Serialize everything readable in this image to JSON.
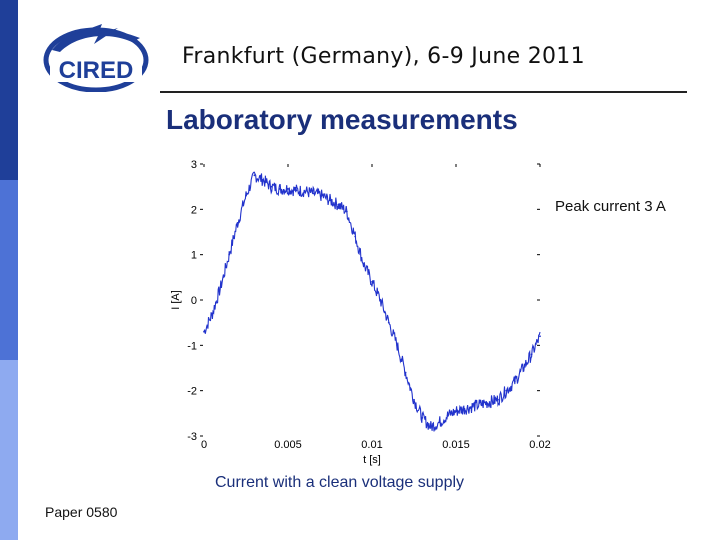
{
  "header": {
    "logo_text": "CIRED",
    "conference": "Frankfurt (Germany), 6-9 June 2011"
  },
  "slide_title": "Laboratory measurements",
  "annotation": "Peak current 3 A",
  "caption": "Current with a clean voltage supply",
  "footer": {
    "paper": "Paper 0580"
  },
  "colors": {
    "sidebar_dark": "#1f3f99",
    "sidebar_mid": "#4d72d6",
    "sidebar_light": "#8eaaf0",
    "trace": "#2233cc",
    "title": "#1a2f7a"
  },
  "chart_data": {
    "type": "line",
    "xlabel": "t [s]",
    "ylabel": "I [A]",
    "xlim": [
      0,
      0.02
    ],
    "ylim": [
      -3,
      3
    ],
    "x_ticks": [
      "0",
      "0.005",
      "0.01",
      "0.015",
      "0.02"
    ],
    "y_ticks": [
      "3",
      "2",
      "1",
      "0",
      "-1",
      "-2",
      "-3"
    ],
    "series": [
      {
        "x": [
          0,
          0.0005,
          0.001,
          0.0015,
          0.002,
          0.0025,
          0.003,
          0.0035,
          0.004,
          0.0045,
          0.005,
          0.0055,
          0.006,
          0.0065,
          0.007,
          0.0075,
          0.008,
          0.0085,
          0.009,
          0.0095,
          0.01,
          0.0105,
          0.011,
          0.0115,
          0.012,
          0.0125,
          0.013,
          0.0135,
          0.014,
          0.0145,
          0.015,
          0.0155,
          0.016,
          0.0165,
          0.017,
          0.0175,
          0.018,
          0.0185,
          0.019,
          0.0195,
          0.02
        ],
        "y": [
          -0.7,
          -0.3,
          0.3,
          1.0,
          1.7,
          2.3,
          2.75,
          2.65,
          2.5,
          2.45,
          2.45,
          2.42,
          2.4,
          2.35,
          2.3,
          2.2,
          2.1,
          1.95,
          1.4,
          0.8,
          0.4,
          0.0,
          -0.5,
          -1.0,
          -1.6,
          -2.2,
          -2.6,
          -2.8,
          -2.7,
          -2.55,
          -2.45,
          -2.4,
          -2.35,
          -2.3,
          -2.25,
          -2.2,
          -2.0,
          -1.8,
          -1.5,
          -1.2,
          -0.8
        ]
      }
    ]
  }
}
